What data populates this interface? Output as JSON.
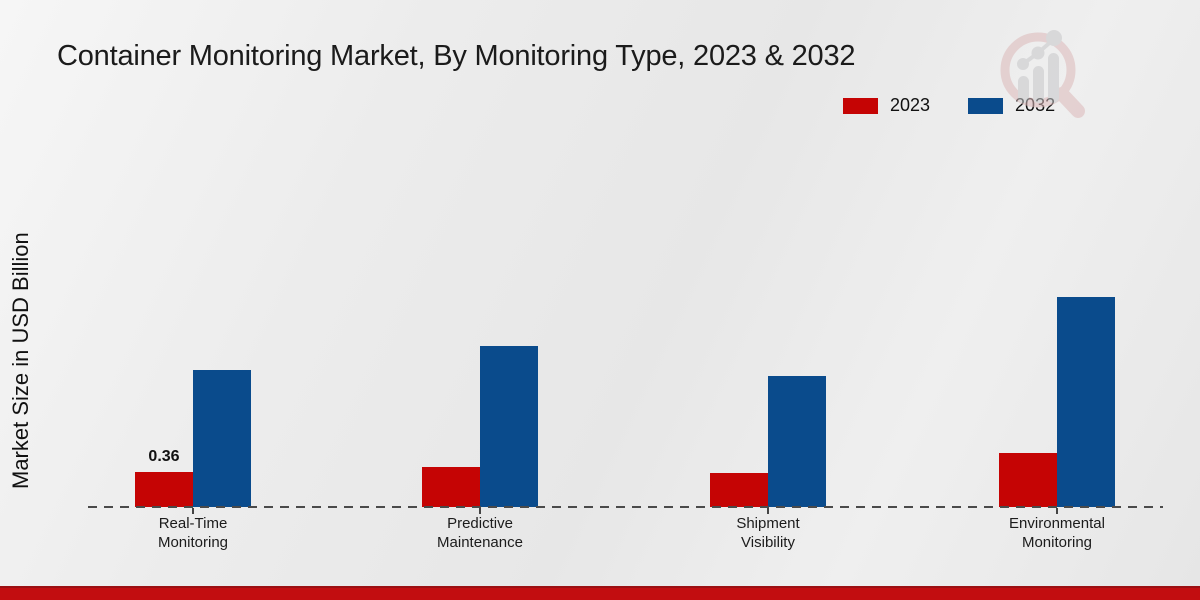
{
  "header": {
    "title": "Container Monitoring Market, By Monitoring Type, 2023 & 2032"
  },
  "legend": {
    "items": [
      {
        "label": "2023",
        "color": "#c50404"
      },
      {
        "label": "2032",
        "color": "#0a4b8c"
      }
    ]
  },
  "watermark": {
    "name": "market-research-magnifier-logo",
    "ring_color": "#dcb9ba",
    "bars_color": "#c7c7c9"
  },
  "chart_data": {
    "type": "bar",
    "title": "Container Monitoring Market, By Monitoring Type, 2023 & 2032",
    "xlabel": "",
    "ylabel": "Market Size in USD Billion",
    "categories": [
      "Real-Time\nMonitoring",
      "Predictive\nMaintenance",
      "Shipment\nVisibility",
      "Environmental\nMonitoring"
    ],
    "series": [
      {
        "name": "2023",
        "color": "#c50404",
        "values": [
          0.36,
          0.41,
          0.35,
          0.56
        ]
      },
      {
        "name": "2032",
        "color": "#0a4b8c",
        "values": [
          1.41,
          1.66,
          1.35,
          2.16
        ]
      }
    ],
    "annotations": [
      {
        "series": "2023",
        "category_index": 0,
        "text": "0.36"
      }
    ],
    "ylim": [
      0,
      2.5
    ],
    "grid": false,
    "legend_position": "top-right",
    "baseline_style": "dashed"
  },
  "footer": {
    "band_color": "#c20d10"
  }
}
